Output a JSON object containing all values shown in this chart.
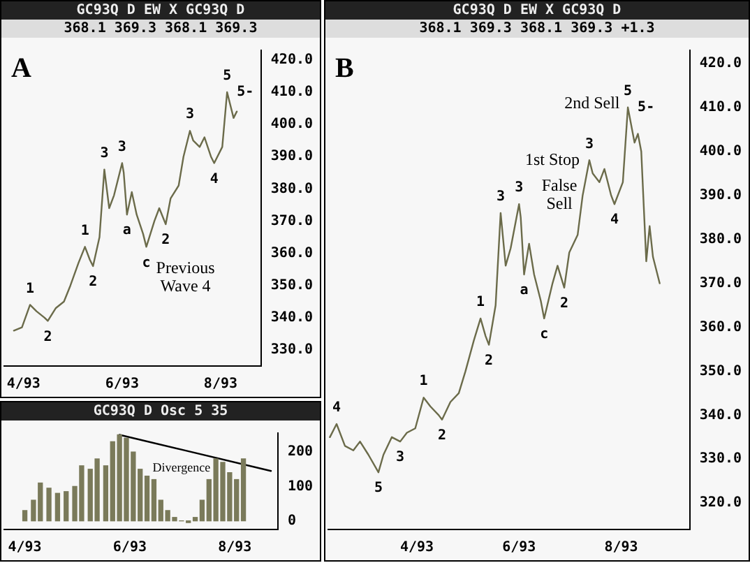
{
  "chart_data": [
    {
      "type": "line",
      "title": "A",
      "annotations": [
        "GC93Q D EW X GC93Q D",
        "368.1 369.3 368.1 369.3",
        {
          "text": "1",
          "x": "1993-04-05",
          "y": 344
        },
        {
          "text": "2",
          "x": "1993-04-16",
          "y": 339
        },
        {
          "text": "1",
          "x": "1993-05-09",
          "y": 362
        },
        {
          "text": "2",
          "x": "1993-05-14",
          "y": 356
        },
        {
          "text": "3",
          "x": "1993-05-21",
          "y": 386
        },
        {
          "text": "3",
          "x": "1993-06-01",
          "y": 388
        },
        {
          "text": "a",
          "x": "1993-06-04",
          "y": 372
        },
        {
          "text": "c",
          "x": "1993-06-16",
          "y": 362
        },
        {
          "text": "2",
          "x": "1993-06-28",
          "y": 369
        },
        {
          "text": "3",
          "x": "1993-07-13",
          "y": 398
        },
        {
          "text": "4",
          "x": "1993-07-28",
          "y": 388
        },
        {
          "text": "5",
          "x": "1993-08-05",
          "y": 410
        },
        {
          "text": "5-",
          "x": "1993-08-05",
          "y": 410
        },
        {
          "text": "Previous Wave 4",
          "x": "1993-06-16",
          "y": 362
        }
      ],
      "xlim": [
        "1993-03-20",
        "1993-08-26"
      ],
      "xticks": [
        {
          "value": "1993-04-01",
          "label": "4/93"
        },
        {
          "value": "1993-06-01",
          "label": "6/93"
        },
        {
          "value": "1993-08-01",
          "label": "8/93"
        }
      ],
      "ylim": [
        325,
        423
      ],
      "yticks": [
        {
          "value": 330,
          "label": "330.0"
        },
        {
          "value": 340,
          "label": "340.0"
        },
        {
          "value": 350,
          "label": "350.0"
        },
        {
          "value": 360,
          "label": "360.0"
        },
        {
          "value": 370,
          "label": "370.0"
        },
        {
          "value": 380,
          "label": "380.0"
        },
        {
          "value": 390,
          "label": "390.0"
        },
        {
          "value": 400,
          "label": "400.0"
        },
        {
          "value": 410,
          "label": "410.0"
        },
        {
          "value": 420,
          "label": "420.0"
        }
      ],
      "series": [
        {
          "color": "#6b6b4a",
          "x": [
            "1993-03-26",
            "1993-03-31",
            "1993-04-05",
            "1993-04-09",
            "1993-04-14",
            "1993-04-16",
            "1993-04-21",
            "1993-04-26",
            "1993-04-30",
            "1993-05-05",
            "1993-05-09",
            "1993-05-12",
            "1993-05-14",
            "1993-05-18",
            "1993-05-21",
            "1993-05-24",
            "1993-05-27",
            "1993-06-01",
            "1993-06-02",
            "1993-06-04",
            "1993-06-07",
            "1993-06-10",
            "1993-06-14",
            "1993-06-16",
            "1993-06-21",
            "1993-06-24",
            "1993-06-28",
            "1993-07-01",
            "1993-07-06",
            "1993-07-09",
            "1993-07-13",
            "1993-07-15",
            "1993-07-19",
            "1993-07-22",
            "1993-07-26",
            "1993-07-28",
            "1993-08-02",
            "1993-08-05",
            "1993-08-09",
            "1993-08-11"
          ],
          "values": [
            336,
            337,
            344,
            342,
            340,
            339,
            343,
            345,
            350,
            357,
            362,
            358,
            356,
            365,
            386,
            374,
            378,
            388,
            385,
            372,
            379,
            372,
            366,
            362,
            370,
            374,
            369,
            377,
            381,
            390,
            398,
            395,
            393,
            396,
            390,
            388,
            393,
            410,
            402,
            404
          ]
        }
      ],
      "legend": false,
      "grid": false
    },
    {
      "type": "bar",
      "annotations": [
        "GC93Q D Osc 5 35",
        {
          "text": "Divergence",
          "x": "1993-07-01",
          "y": 207
        }
      ],
      "xlim": [
        "1993-03-20",
        "1993-08-26"
      ],
      "xticks": [
        {
          "value": "1993-04-01",
          "label": "4/93"
        },
        {
          "value": "1993-06-01",
          "label": "6/93"
        },
        {
          "value": "1993-08-01",
          "label": "8/93"
        }
      ],
      "ylim": [
        -25,
        255
      ],
      "yticks": [
        0,
        100,
        200
      ],
      "series": [
        {
          "color": "#7a7a5a",
          "x": [
            "1993-04-01",
            "1993-04-06",
            "1993-04-10",
            "1993-04-15",
            "1993-04-20",
            "1993-04-25",
            "1993-04-30",
            "1993-05-04",
            "1993-05-09",
            "1993-05-13",
            "1993-05-18",
            "1993-05-22",
            "1993-05-26",
            "1993-05-30",
            "1993-06-03",
            "1993-06-07",
            "1993-06-11",
            "1993-06-15",
            "1993-06-19",
            "1993-06-23",
            "1993-06-27",
            "1993-07-01",
            "1993-07-05",
            "1993-07-09",
            "1993-07-13",
            "1993-07-17",
            "1993-07-21",
            "1993-07-25",
            "1993-07-29",
            "1993-08-02",
            "1993-08-06"
          ],
          "values": [
            30,
            60,
            110,
            95,
            80,
            85,
            100,
            160,
            150,
            180,
            160,
            230,
            250,
            240,
            200,
            150,
            130,
            120,
            60,
            30,
            10,
            0,
            -5,
            10,
            60,
            120,
            180,
            170,
            140,
            120,
            180
          ]
        },
        {
          "type": "line",
          "color": "#000000",
          "x": [
            "1993-05-26",
            "1993-07-01",
            "1993-08-22"
          ],
          "values": [
            250,
            207,
            145
          ]
        }
      ],
      "legend": false,
      "grid": false
    },
    {
      "type": "line",
      "title": "B",
      "annotations": [
        "GC93Q D EW X GC93Q D",
        "368.1 369.3 368.1 369.3 +1.3",
        {
          "text": "4",
          "x": "1993-02-12",
          "y": 338
        },
        {
          "text": "5",
          "x": "1993-03-09",
          "y": 327
        },
        {
          "text": "3",
          "x": "1993-03-22",
          "y": 334
        },
        {
          "text": "1",
          "x": "1993-04-05",
          "y": 344
        },
        {
          "text": "2",
          "x": "1993-04-16",
          "y": 339
        },
        {
          "text": "1",
          "x": "1993-05-09",
          "y": 362
        },
        {
          "text": "2",
          "x": "1993-05-14",
          "y": 356
        },
        {
          "text": "3",
          "x": "1993-05-21",
          "y": 386
        },
        {
          "text": "3",
          "x": "1993-06-01",
          "y": 388
        },
        {
          "text": "a",
          "x": "1993-06-04",
          "y": 372
        },
        {
          "text": "c",
          "x": "1993-06-16",
          "y": 362
        },
        {
          "text": "2",
          "x": "1993-06-28",
          "y": 369
        },
        {
          "text": "3",
          "x": "1993-07-13",
          "y": 398
        },
        {
          "text": "4",
          "x": "1993-07-28",
          "y": 388
        },
        {
          "text": "5",
          "x": "1993-08-05",
          "y": 410
        },
        {
          "text": "5-",
          "x": "1993-08-05",
          "y": 410
        },
        {
          "text": "False Sell",
          "x": "1993-07-09",
          "y": 390
        },
        {
          "text": "1st Stop",
          "x": "1993-07-13",
          "y": 398
        },
        {
          "text": "2nd Sell",
          "x": "1993-08-11",
          "y": 404
        }
      ],
      "xlim": [
        "1993-02-07",
        "1993-09-11"
      ],
      "xticks": [
        {
          "value": "1993-04-01",
          "label": "4/93"
        },
        {
          "value": "1993-06-01",
          "label": "6/93"
        },
        {
          "value": "1993-08-01",
          "label": "8/93"
        }
      ],
      "ylim": [
        314,
        423
      ],
      "yticks": [
        {
          "value": 320,
          "label": "320.0"
        },
        {
          "value": 330,
          "label": "330.0"
        },
        {
          "value": 340,
          "label": "340.0"
        },
        {
          "value": 350,
          "label": "350.0"
        },
        {
          "value": 360,
          "label": "360.0"
        },
        {
          "value": 370,
          "label": "370.0"
        },
        {
          "value": 380,
          "label": "380.0"
        },
        {
          "value": 390,
          "label": "390.0"
        },
        {
          "value": 400,
          "label": "400.0"
        },
        {
          "value": 410,
          "label": "410.0"
        },
        {
          "value": 420,
          "label": "420.0"
        }
      ],
      "series": [
        {
          "color": "#6b6b4a",
          "x": [
            "1993-02-08",
            "1993-02-12",
            "1993-02-17",
            "1993-02-22",
            "1993-02-26",
            "1993-03-03",
            "1993-03-09",
            "1993-03-12",
            "1993-03-17",
            "1993-03-22",
            "1993-03-26",
            "1993-03-31",
            "1993-04-05",
            "1993-04-09",
            "1993-04-14",
            "1993-04-16",
            "1993-04-21",
            "1993-04-26",
            "1993-04-30",
            "1993-05-05",
            "1993-05-09",
            "1993-05-12",
            "1993-05-14",
            "1993-05-18",
            "1993-05-21",
            "1993-05-24",
            "1993-05-27",
            "1993-06-01",
            "1993-06-02",
            "1993-06-04",
            "1993-06-07",
            "1993-06-10",
            "1993-06-14",
            "1993-06-16",
            "1993-06-21",
            "1993-06-24",
            "1993-06-28",
            "1993-07-01",
            "1993-07-06",
            "1993-07-09",
            "1993-07-13",
            "1993-07-15",
            "1993-07-19",
            "1993-07-22",
            "1993-07-26",
            "1993-07-28",
            "1993-08-02",
            "1993-08-05",
            "1993-08-09",
            "1993-08-11",
            "1993-08-13",
            "1993-08-16",
            "1993-08-18",
            "1993-08-20",
            "1993-08-24"
          ],
          "values": [
            335,
            338,
            333,
            332,
            334,
            331,
            327,
            331,
            335,
            334,
            336,
            337,
            344,
            342,
            340,
            339,
            343,
            345,
            350,
            357,
            362,
            358,
            356,
            365,
            386,
            374,
            378,
            388,
            385,
            372,
            379,
            372,
            366,
            362,
            370,
            374,
            369,
            377,
            381,
            390,
            398,
            395,
            393,
            396,
            390,
            388,
            393,
            410,
            402,
            404,
            400,
            375,
            383,
            376,
            370
          ]
        }
      ],
      "legend": false,
      "grid": false
    }
  ]
}
